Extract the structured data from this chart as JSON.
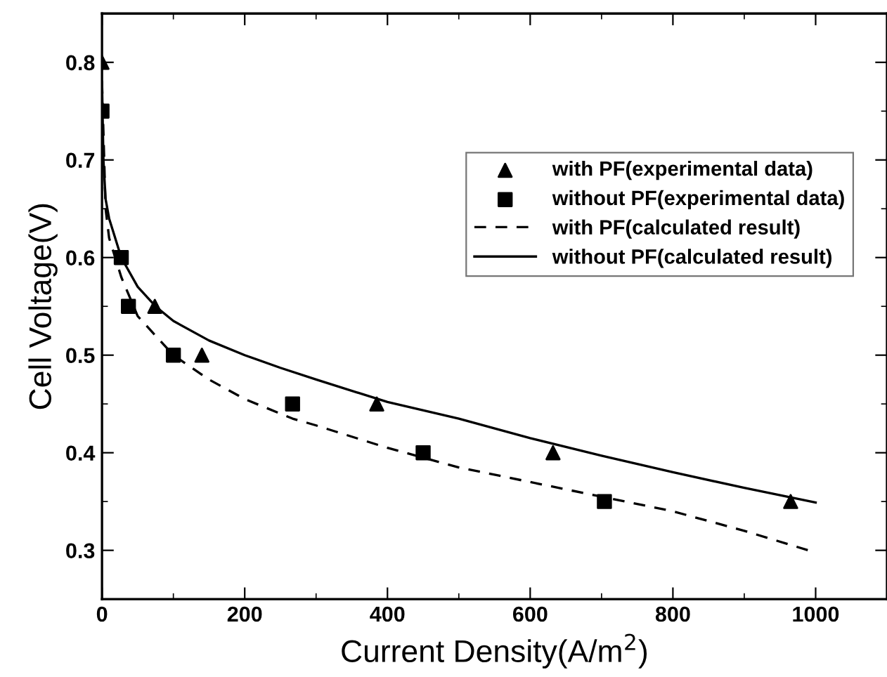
{
  "chart_data": {
    "type": "scatter",
    "xlabel": "Current Density(A/m$^{2}$)",
    "ylabel": "Cell Voltage(V)",
    "xlim": [
      0,
      1100
    ],
    "ylim": [
      0.25,
      0.85
    ],
    "xticks": [
      0,
      200,
      400,
      600,
      800,
      1000
    ],
    "yticks": [
      0.3,
      0.4,
      0.5,
      0.6,
      0.7,
      0.8
    ],
    "legend": "top right",
    "grid": false,
    "series": [
      {
        "name": "with PF(experimental data)",
        "marker": "triangle",
        "color": "#000000",
        "x": [
          0,
          74,
          140,
          385,
          632,
          965
        ],
        "values": [
          0.8,
          0.55,
          0.5,
          0.45,
          0.4,
          0.35
        ]
      },
      {
        "name": "without PF(experimental data)",
        "marker": "square",
        "color": "#000000",
        "x": [
          0,
          27,
          37,
          100,
          267,
          450,
          704
        ],
        "values": [
          0.75,
          0.6,
          0.55,
          0.5,
          0.45,
          0.4,
          0.35
        ]
      },
      {
        "name": "with PF(calculated result)",
        "type": "line",
        "line_style": "dashed",
        "marker": "none",
        "color": "#000000",
        "x": [
          0,
          5,
          10,
          27,
          50,
          100,
          150,
          200,
          267,
          300,
          400,
          450,
          500,
          600,
          700,
          800,
          900,
          990
        ],
        "values": [
          0.78,
          0.65,
          0.62,
          0.58,
          0.54,
          0.5,
          0.475,
          0.455,
          0.435,
          0.428,
          0.405,
          0.395,
          0.385,
          0.37,
          0.355,
          0.34,
          0.32,
          0.3
        ]
      },
      {
        "name": "without PF(calculated result)",
        "type": "line",
        "line_style": "solid",
        "marker": "none",
        "color": "#000000",
        "x": [
          0,
          2,
          5,
          10,
          27,
          50,
          75,
          100,
          150,
          200,
          250,
          300,
          400,
          500,
          600,
          700,
          800,
          900,
          1000
        ],
        "values": [
          0.78,
          0.7,
          0.66,
          0.64,
          0.6,
          0.57,
          0.55,
          0.535,
          0.515,
          0.5,
          0.487,
          0.475,
          0.452,
          0.435,
          0.415,
          0.397,
          0.38,
          0.364,
          0.349
        ]
      }
    ]
  }
}
